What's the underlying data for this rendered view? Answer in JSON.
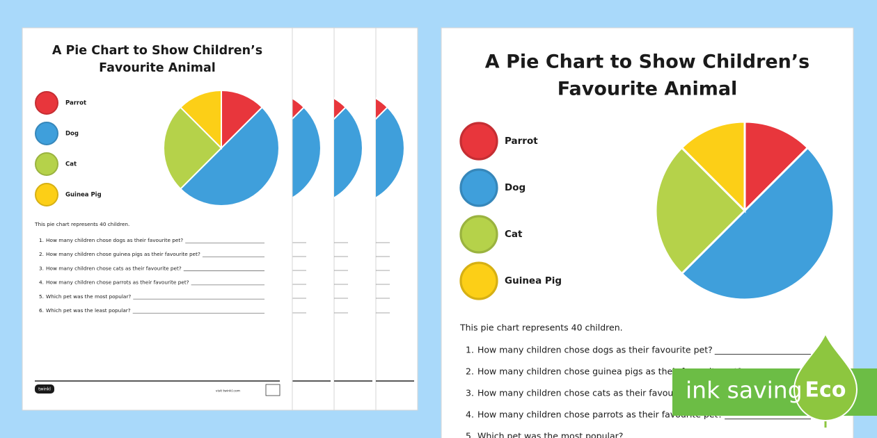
{
  "worksheet": {
    "title_lines": [
      "A Pie Chart to Show Children’s",
      "Favourite Animal"
    ],
    "pie": {
      "type": "pie",
      "categories": [
        "Parrot",
        "Dog",
        "Cat",
        "Guinea Pig"
      ],
      "values": [
        12.5,
        50,
        25,
        12.5
      ],
      "colors": [
        "#e8363c",
        "#3f9fdb",
        "#b5d24a",
        "#fccf17"
      ]
    },
    "intro": "This pie chart represents 40 children.",
    "questions": [
      {
        "number": "1.",
        "text": "How many children chose dogs as their favourite pet?"
      },
      {
        "number": "2.",
        "text": "How many children chose guinea pigs as their favourite pet?"
      },
      {
        "number": "3.",
        "text": "How many children chose cats as their favourite pet?"
      },
      {
        "number": "4.",
        "text": "How many children chose parrots as their favourite pet?"
      },
      {
        "number": "5.",
        "text": "Which pet was the most popular?"
      },
      {
        "number": "6.",
        "text": "Which pet was the least popular?"
      }
    ],
    "footer": {
      "logo": "twinkl",
      "site": "visit twinkl.com"
    }
  },
  "badge": {
    "text": "ink saving",
    "label": "Eco"
  }
}
